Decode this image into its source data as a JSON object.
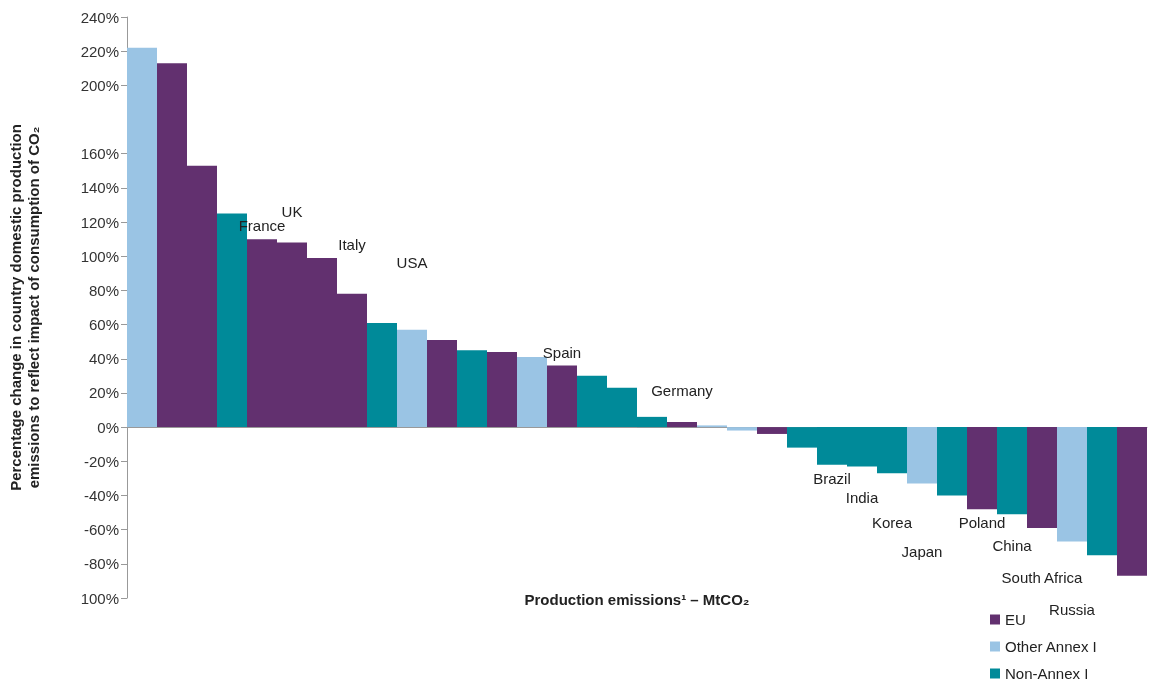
{
  "chart_data": {
    "type": "bar",
    "stacked": true,
    "xlabel": "Production emissions¹ – MtCO₂",
    "ylabel": "Percentage change in country domestic production emissions to reflect impact of consumption of CO₂",
    "categories": [
      null,
      null,
      null,
      null,
      "France",
      "UK",
      null,
      "Italy",
      null,
      "USA",
      null,
      null,
      null,
      null,
      "Spain",
      null,
      null,
      null,
      "Germany",
      null,
      null,
      null,
      null,
      "Brazil",
      "India",
      "Korea",
      "Japan",
      null,
      "Poland",
      "China",
      "South Africa",
      "Russia",
      null,
      null
    ],
    "series": [
      {
        "name": "EU",
        "color": "#62306f",
        "values": [
          null,
          213,
          153,
          null,
          110,
          108,
          99,
          78,
          null,
          null,
          51,
          null,
          44,
          null,
          36,
          null,
          null,
          null,
          3,
          null,
          null,
          -4,
          null,
          null,
          null,
          null,
          null,
          null,
          -48,
          null,
          -59,
          null,
          null,
          -87
        ]
      },
      {
        "name": "Other Annex I",
        "color": "#9ac4e4",
        "values": [
          222,
          null,
          null,
          null,
          null,
          null,
          null,
          null,
          null,
          57,
          null,
          null,
          null,
          41,
          null,
          null,
          null,
          null,
          null,
          1,
          -2,
          null,
          null,
          null,
          null,
          null,
          -33,
          null,
          null,
          null,
          null,
          -67,
          null,
          null
        ]
      },
      {
        "name": "Non-Annex I",
        "color": "#008a99",
        "values": [
          null,
          null,
          null,
          125,
          null,
          null,
          null,
          null,
          61,
          null,
          null,
          45,
          null,
          null,
          null,
          30,
          23,
          6,
          null,
          null,
          null,
          null,
          -12,
          -22,
          -23,
          -27,
          null,
          -40,
          null,
          -51,
          null,
          null,
          -75,
          null
        ]
      }
    ],
    "ylim": [
      -100,
      240
    ],
    "yticks": [
      {
        "value": -100,
        "label": "100%"
      },
      {
        "value": -80,
        "label": "-80%"
      },
      {
        "value": -60,
        "label": "-60%"
      },
      {
        "value": -40,
        "label": "-40%"
      },
      {
        "value": -20,
        "label": "-20%"
      },
      {
        "value": 0,
        "label": "0%"
      },
      {
        "value": 20,
        "label": "20%"
      },
      {
        "value": 40,
        "label": "40%"
      },
      {
        "value": 60,
        "label": "60%"
      },
      {
        "value": 80,
        "label": "80%"
      },
      {
        "value": 100,
        "label": "100%"
      },
      {
        "value": 120,
        "label": "120%"
      },
      {
        "value": 140,
        "label": "140%"
      },
      {
        "value": 160,
        "label": "160%"
      },
      {
        "value": 200,
        "label": "200%"
      },
      {
        "value": 220,
        "label": "220%"
      },
      {
        "value": 240,
        "label": "240%"
      }
    ],
    "legend": "bottom right",
    "tick_labels": "y"
  }
}
